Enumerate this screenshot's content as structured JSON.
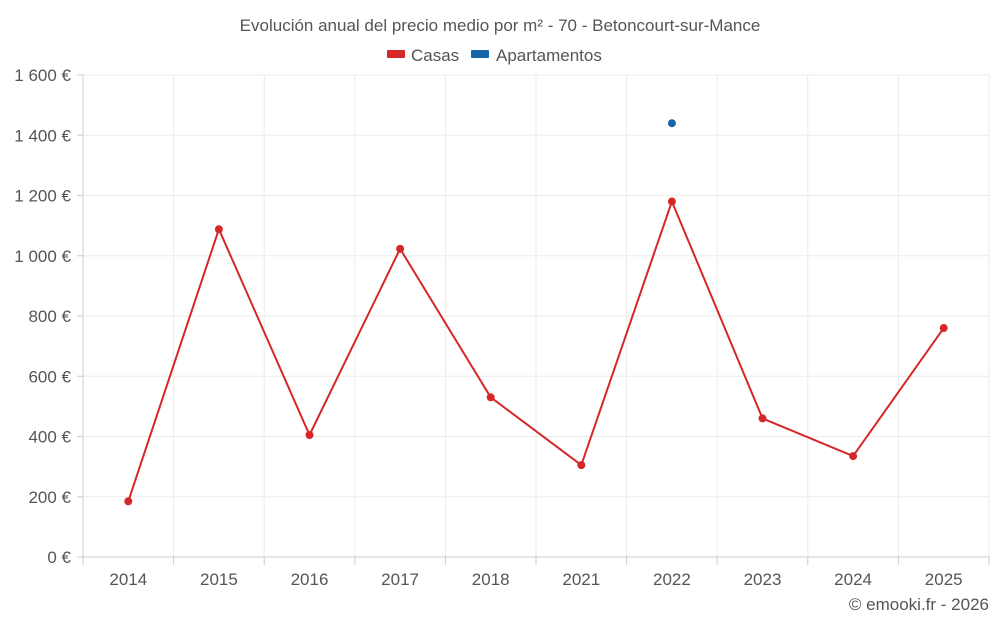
{
  "chart_data": {
    "type": "line",
    "title": "Evolución anual del precio medio por m² - 70 - Betoncourt-sur-Mance",
    "categories": [
      "2014",
      "2015",
      "2016",
      "2017",
      "2018",
      "2021",
      "2022",
      "2023",
      "2024",
      "2025"
    ],
    "series": [
      {
        "name": "Casas",
        "color": "#d62728",
        "values": [
          185,
          1088,
          405,
          1023,
          530,
          305,
          1180,
          460,
          335,
          760
        ]
      },
      {
        "name": "Apartamentos",
        "color": "#1565a8",
        "values": [
          null,
          null,
          null,
          null,
          null,
          null,
          1440,
          null,
          null,
          null
        ]
      }
    ],
    "ylim": [
      0,
      1600
    ],
    "yticks": [
      0,
      200,
      400,
      600,
      800,
      1000,
      1200,
      1400,
      1600
    ],
    "ytick_labels": [
      "0 €",
      "200 €",
      "400 €",
      "600 €",
      "800 €",
      "1 000 €",
      "1 200 €",
      "1 400 €",
      "1 600 €"
    ],
    "grid": true,
    "legend_position": "top-center",
    "credit": "© emooki.fr - 2026"
  }
}
